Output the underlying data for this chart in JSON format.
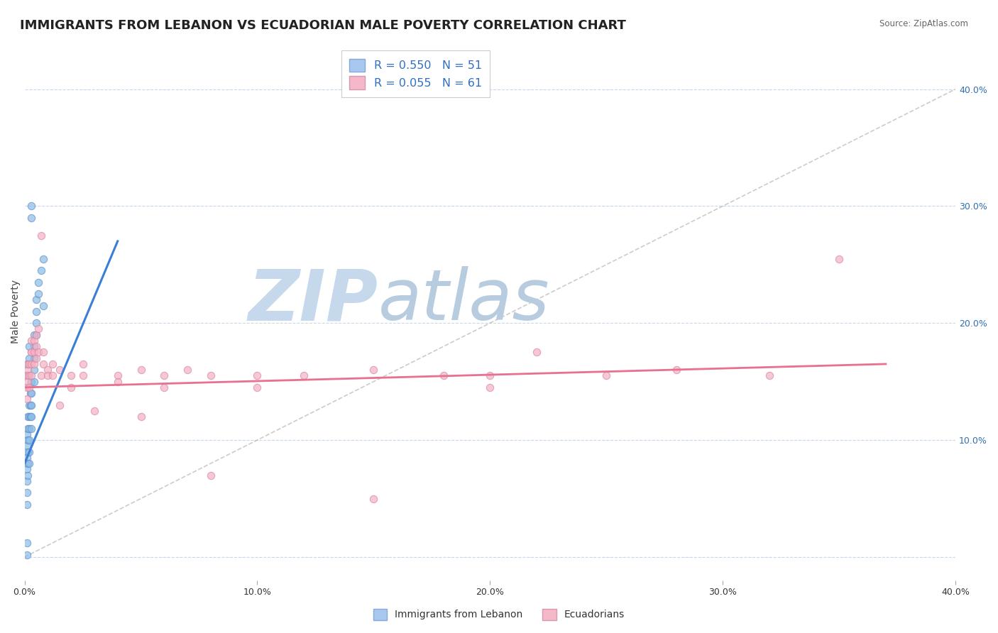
{
  "title": "IMMIGRANTS FROM LEBANON VS ECUADORIAN MALE POVERTY CORRELATION CHART",
  "source": "Source: ZipAtlas.com",
  "ylabel": "Male Poverty",
  "right_yticks": [
    0.0,
    0.1,
    0.2,
    0.3,
    0.4
  ],
  "right_ytick_labels": [
    "",
    "10.0%",
    "20.0%",
    "30.0%",
    "40.0%"
  ],
  "xmin": 0.0,
  "xmax": 0.4,
  "ymin": -0.02,
  "ymax": 0.44,
  "blue_scatter": [
    [
      0.001,
      0.085
    ],
    [
      0.001,
      0.075
    ],
    [
      0.001,
      0.065
    ],
    [
      0.001,
      0.055
    ],
    [
      0.001,
      0.045
    ],
    [
      0.001,
      0.105
    ],
    [
      0.001,
      0.095
    ],
    [
      0.0015,
      0.12
    ],
    [
      0.0015,
      0.11
    ],
    [
      0.0015,
      0.1
    ],
    [
      0.0015,
      0.09
    ],
    [
      0.0015,
      0.08
    ],
    [
      0.0015,
      0.07
    ],
    [
      0.002,
      0.13
    ],
    [
      0.002,
      0.12
    ],
    [
      0.002,
      0.11
    ],
    [
      0.002,
      0.1
    ],
    [
      0.002,
      0.09
    ],
    [
      0.002,
      0.08
    ],
    [
      0.0025,
      0.14
    ],
    [
      0.0025,
      0.13
    ],
    [
      0.0025,
      0.12
    ],
    [
      0.003,
      0.15
    ],
    [
      0.003,
      0.14
    ],
    [
      0.003,
      0.13
    ],
    [
      0.003,
      0.12
    ],
    [
      0.003,
      0.11
    ],
    [
      0.004,
      0.19
    ],
    [
      0.004,
      0.18
    ],
    [
      0.004,
      0.17
    ],
    [
      0.004,
      0.16
    ],
    [
      0.004,
      0.15
    ],
    [
      0.005,
      0.22
    ],
    [
      0.005,
      0.21
    ],
    [
      0.005,
      0.2
    ],
    [
      0.005,
      0.19
    ],
    [
      0.006,
      0.235
    ],
    [
      0.006,
      0.225
    ],
    [
      0.007,
      0.245
    ],
    [
      0.008,
      0.255
    ],
    [
      0.001,
      0.155
    ],
    [
      0.001,
      0.165
    ],
    [
      0.0015,
      0.155
    ],
    [
      0.001,
      0.002
    ],
    [
      0.001,
      0.012
    ],
    [
      0.002,
      0.17
    ],
    [
      0.002,
      0.18
    ],
    [
      0.003,
      0.29
    ],
    [
      0.003,
      0.3
    ],
    [
      0.008,
      0.215
    ]
  ],
  "pink_scatter": [
    [
      0.001,
      0.155
    ],
    [
      0.001,
      0.145
    ],
    [
      0.001,
      0.135
    ],
    [
      0.0015,
      0.16
    ],
    [
      0.0015,
      0.15
    ],
    [
      0.0015,
      0.165
    ],
    [
      0.002,
      0.155
    ],
    [
      0.002,
      0.145
    ],
    [
      0.002,
      0.165
    ],
    [
      0.003,
      0.175
    ],
    [
      0.003,
      0.165
    ],
    [
      0.003,
      0.155
    ],
    [
      0.003,
      0.185
    ],
    [
      0.003,
      0.175
    ],
    [
      0.004,
      0.185
    ],
    [
      0.004,
      0.175
    ],
    [
      0.004,
      0.165
    ],
    [
      0.005,
      0.18
    ],
    [
      0.005,
      0.19
    ],
    [
      0.005,
      0.17
    ],
    [
      0.006,
      0.195
    ],
    [
      0.006,
      0.175
    ],
    [
      0.007,
      0.155
    ],
    [
      0.007,
      0.275
    ],
    [
      0.008,
      0.175
    ],
    [
      0.008,
      0.165
    ],
    [
      0.01,
      0.16
    ],
    [
      0.01,
      0.155
    ],
    [
      0.012,
      0.165
    ],
    [
      0.012,
      0.155
    ],
    [
      0.015,
      0.16
    ],
    [
      0.015,
      0.13
    ],
    [
      0.02,
      0.155
    ],
    [
      0.02,
      0.145
    ],
    [
      0.025,
      0.165
    ],
    [
      0.025,
      0.155
    ],
    [
      0.03,
      0.125
    ],
    [
      0.04,
      0.155
    ],
    [
      0.04,
      0.15
    ],
    [
      0.05,
      0.16
    ],
    [
      0.05,
      0.12
    ],
    [
      0.06,
      0.155
    ],
    [
      0.06,
      0.145
    ],
    [
      0.07,
      0.16
    ],
    [
      0.08,
      0.155
    ],
    [
      0.08,
      0.07
    ],
    [
      0.1,
      0.155
    ],
    [
      0.1,
      0.145
    ],
    [
      0.12,
      0.155
    ],
    [
      0.15,
      0.16
    ],
    [
      0.15,
      0.05
    ],
    [
      0.18,
      0.155
    ],
    [
      0.2,
      0.155
    ],
    [
      0.2,
      0.145
    ],
    [
      0.22,
      0.175
    ],
    [
      0.25,
      0.155
    ],
    [
      0.28,
      0.16
    ],
    [
      0.32,
      0.155
    ],
    [
      0.35,
      0.255
    ]
  ],
  "blue_line": [
    [
      0.0,
      0.08
    ],
    [
      0.04,
      0.27
    ]
  ],
  "pink_line": [
    [
      0.0,
      0.145
    ],
    [
      0.37,
      0.165
    ]
  ],
  "diag_line": [
    [
      0.0,
      0.0
    ],
    [
      0.4,
      0.4
    ]
  ],
  "blue_line_color": "#3a7fd5",
  "pink_line_color": "#e87090",
  "diag_line_color": "#aaaaaa",
  "watermark_zip": "ZIP",
  "watermark_atlas": "atlas",
  "watermark_color_zip": "#c5d8ec",
  "watermark_color_atlas": "#b8cce0",
  "background_color": "#ffffff",
  "grid_color": "#c8d8e8",
  "title_fontsize": 13,
  "axis_label_fontsize": 10,
  "tick_fontsize": 9,
  "right_tick_color": "#3070b0"
}
